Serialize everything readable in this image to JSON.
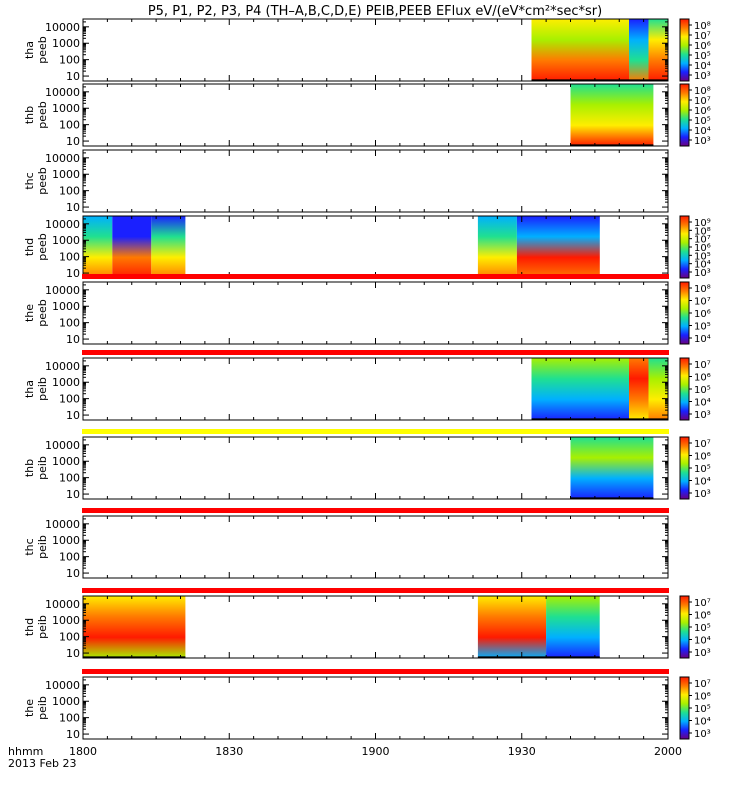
{
  "title": "P5, P1, P2, P3, P4 (TH–A,B,C,D,E) PEIB,PEEB EFlux eV/(eV*cm²*sec*sr)",
  "x_axis": {
    "label_line1": "hhmm",
    "label_line2": "2013 Feb 23",
    "ticks": [
      "1800",
      "1830",
      "1900",
      "1930",
      "2000"
    ]
  },
  "colors": {
    "spectrum": [
      "#6a0080",
      "#1a20ff",
      "#00b0ff",
      "#20e090",
      "#a8f000",
      "#ffee00",
      "#ff7a00",
      "#ff1a00"
    ],
    "bar_red": "#ff0000",
    "bar_yellow": "#ffff00",
    "axis": "#000000",
    "background": "#ffffff"
  },
  "chart_data": {
    "type": "heatmap",
    "x_range_hhmm": [
      "1800",
      "2000"
    ],
    "y_scale": "log",
    "y_ticks": [
      "10",
      "100",
      "1000",
      "10000"
    ],
    "panels": [
      {
        "id": "tha-peeb",
        "probe": "tha",
        "instrument": "peeb",
        "ylabel_line1": "tha",
        "ylabel_line2": "peeb",
        "colorbar": {
          "ticks": [
            "10⁸",
            "10⁷",
            "10⁶",
            "10⁵",
            "10⁴",
            "10³"
          ]
        },
        "coverage_hhmm": [
          [
            "1932",
            "2000"
          ]
        ],
        "heat": [
          {
            "from": "1932",
            "to": "1952",
            "bands": [
              "#ffee00",
              "#a8f000",
              "#ff7a00",
              "#ff1a00"
            ]
          },
          {
            "from": "1952",
            "to": "1956",
            "bands": [
              "#1a20ff",
              "#00b0ff",
              "#20e090",
              "#ff7a00"
            ]
          },
          {
            "from": "1956",
            "to": "2000",
            "bands": [
              "#20e090",
              "#ffee00",
              "#ff7a00",
              "#ff1a00"
            ]
          }
        ],
        "status_bar": null
      },
      {
        "id": "thb-peeb",
        "probe": "thb",
        "instrument": "peeb",
        "ylabel_line1": "thb",
        "ylabel_line2": "peeb",
        "colorbar": {
          "ticks": [
            "10⁸",
            "10⁷",
            "10⁶",
            "10⁵",
            "10⁴",
            "10³"
          ]
        },
        "coverage_hhmm": [
          [
            "1940",
            "1957"
          ]
        ],
        "heat": [
          {
            "from": "1940",
            "to": "1957",
            "bands": [
              "#20e090",
              "#a8f000",
              "#ffee00",
              "#ff1a00"
            ]
          }
        ],
        "status_bar": null
      },
      {
        "id": "thc-peeb",
        "probe": "thc",
        "instrument": "peeb",
        "ylabel_line1": "thc",
        "ylabel_line2": "peeb",
        "colorbar": null,
        "coverage_hhmm": [],
        "heat": [],
        "status_bar": null
      },
      {
        "id": "thd-peeb",
        "probe": "thd",
        "instrument": "peeb",
        "ylabel_line1": "thd",
        "ylabel_line2": "peeb",
        "colorbar": {
          "ticks": [
            "10⁹",
            "10⁸",
            "10⁷",
            "10⁶",
            "10⁵",
            "10⁴",
            "10³"
          ]
        },
        "coverage_hhmm": [
          [
            "1800",
            "1821"
          ],
          [
            "1921",
            "1946"
          ]
        ],
        "heat": [
          {
            "from": "1800",
            "to": "1806",
            "bands": [
              "#00b0ff",
              "#20e090",
              "#ffee00",
              "#ff7a00"
            ]
          },
          {
            "from": "1806",
            "to": "1814",
            "bands": [
              "#1a20ff",
              "#1a20ff",
              "#ff7a00",
              "#ff1a00"
            ]
          },
          {
            "from": "1814",
            "to": "1821",
            "bands": [
              "#1a20ff",
              "#20e090",
              "#ffee00",
              "#ff7a00"
            ]
          },
          {
            "from": "1921",
            "to": "1929",
            "bands": [
              "#00b0ff",
              "#20e090",
              "#ffee00",
              "#ff7a00"
            ]
          },
          {
            "from": "1929",
            "to": "1946",
            "bands": [
              "#1a20ff",
              "#00b0ff",
              "#ff1a00",
              "#ff7a00"
            ]
          }
        ],
        "status_bar": null
      },
      {
        "id": "the-peeb",
        "probe": "the",
        "instrument": "peeb",
        "ylabel_line1": "the",
        "ylabel_line2": "peeb",
        "colorbar": {
          "ticks": [
            "10⁸",
            "10⁷",
            "10⁶",
            "10⁵",
            "10⁴"
          ]
        },
        "coverage_hhmm": [],
        "heat": [],
        "status_bar": "red"
      },
      {
        "id": "tha-peib",
        "probe": "tha",
        "instrument": "peib",
        "ylabel_line1": "tha",
        "ylabel_line2": "peib",
        "colorbar": {
          "ticks": [
            "10⁷",
            "10⁶",
            "10⁵",
            "10⁴",
            "10³"
          ]
        },
        "coverage_hhmm": [
          [
            "1932",
            "2000"
          ]
        ],
        "heat": [
          {
            "from": "1932",
            "to": "1952",
            "bands": [
              "#a8f000",
              "#20e090",
              "#00b0ff",
              "#1a20ff"
            ]
          },
          {
            "from": "1952",
            "to": "1956",
            "bands": [
              "#ff7a00",
              "#ff1a00",
              "#ff7a00",
              "#ffee00"
            ]
          },
          {
            "from": "1956",
            "to": "2000",
            "bands": [
              "#20e090",
              "#a8f000",
              "#ffee00",
              "#ff7a00"
            ]
          }
        ],
        "status_bar": "red"
      },
      {
        "id": "thb-peib",
        "probe": "thb",
        "instrument": "peib",
        "ylabel_line1": "thb",
        "ylabel_line2": "peib",
        "colorbar": {
          "ticks": [
            "10⁷",
            "10⁶",
            "10⁵",
            "10⁴",
            "10³"
          ]
        },
        "coverage_hhmm": [
          [
            "1940",
            "1957"
          ]
        ],
        "heat": [
          {
            "from": "1940",
            "to": "1957",
            "bands": [
              "#20e090",
              "#a8f000",
              "#00b0ff",
              "#1a20ff"
            ]
          }
        ],
        "status_bar": "yellow"
      },
      {
        "id": "thc-peib",
        "probe": "thc",
        "instrument": "peib",
        "ylabel_line1": "thc",
        "ylabel_line2": "peib",
        "colorbar": null,
        "coverage_hhmm": [],
        "heat": [],
        "status_bar": "red"
      },
      {
        "id": "thd-peib",
        "probe": "thd",
        "instrument": "peib",
        "ylabel_line1": "thd",
        "ylabel_line2": "peib",
        "colorbar": {
          "ticks": [
            "10⁷",
            "10⁶",
            "10⁵",
            "10⁴",
            "10³"
          ]
        },
        "coverage_hhmm": [
          [
            "1800",
            "1821"
          ],
          [
            "1921",
            "1946"
          ]
        ],
        "heat": [
          {
            "from": "1800",
            "to": "1821",
            "bands": [
              "#ffee00",
              "#ff7a00",
              "#ff1a00",
              "#a8f000"
            ]
          },
          {
            "from": "1921",
            "to": "1935",
            "bands": [
              "#ffee00",
              "#ff7a00",
              "#ff1a00",
              "#00b0ff"
            ]
          },
          {
            "from": "1935",
            "to": "1946",
            "bands": [
              "#a8f000",
              "#20e090",
              "#00b0ff",
              "#1a20ff"
            ]
          }
        ],
        "status_bar": "red"
      },
      {
        "id": "the-peib",
        "probe": "the",
        "instrument": "peib",
        "ylabel_line1": "the",
        "ylabel_line2": "peib",
        "colorbar": {
          "ticks": [
            "10⁷",
            "10⁶",
            "10⁵",
            "10⁴",
            "10³"
          ]
        },
        "coverage_hhmm": [],
        "heat": [],
        "status_bar": "red"
      }
    ]
  }
}
